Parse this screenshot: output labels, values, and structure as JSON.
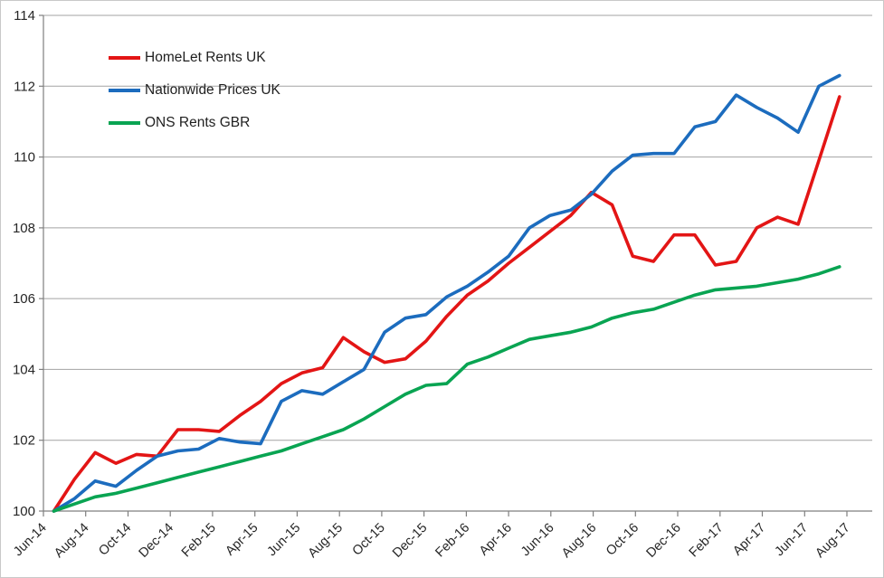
{
  "chart_data": {
    "type": "line",
    "title": "",
    "xlabel": "",
    "ylabel": "",
    "ylim": [
      100,
      114
    ],
    "ytick_step": 2,
    "grid": true,
    "legend_position": "inside-top-left",
    "y_tick_labels": [
      "100",
      "102",
      "104",
      "106",
      "108",
      "110",
      "112",
      "114"
    ],
    "x_tick_labels": [
      "Jun-14",
      "Aug-14",
      "Oct-14",
      "Dec-14",
      "Feb-15",
      "Apr-15",
      "Jun-15",
      "Aug-15",
      "Oct-15",
      "Dec-15",
      "Feb-16",
      "Apr-16",
      "Jun-16",
      "Aug-16",
      "Oct-16",
      "Dec-16",
      "Feb-17",
      "Apr-17",
      "Jun-17",
      "Aug-17"
    ],
    "categories": [
      "Jun-14",
      "Jul-14",
      "Aug-14",
      "Sep-14",
      "Oct-14",
      "Nov-14",
      "Dec-14",
      "Jan-15",
      "Feb-15",
      "Mar-15",
      "Apr-15",
      "May-15",
      "Jun-15",
      "Jul-15",
      "Aug-15",
      "Sep-15",
      "Oct-15",
      "Nov-15",
      "Dec-15",
      "Jan-16",
      "Feb-16",
      "Mar-16",
      "Apr-16",
      "May-16",
      "Jun-16",
      "Jul-16",
      "Aug-16",
      "Sep-16",
      "Oct-16",
      "Nov-16",
      "Dec-16",
      "Jan-17",
      "Feb-17",
      "Mar-17",
      "Apr-17",
      "May-17",
      "Jun-17",
      "Jul-17",
      "Aug-17"
    ],
    "series": [
      {
        "id": "homelet-rents-uk",
        "name": "HomeLet Rents UK",
        "color": "#e31515",
        "values": [
          100,
          100.9,
          101.65,
          101.35,
          101.6,
          101.55,
          102.3,
          102.3,
          102.25,
          102.7,
          103.1,
          103.6,
          103.9,
          104.05,
          104.9,
          104.5,
          104.2,
          104.3,
          104.8,
          105.5,
          106.1,
          106.5,
          107.0,
          107.45,
          107.9,
          108.35,
          109.0,
          108.65,
          107.2,
          107.05,
          107.8,
          107.8,
          106.95,
          107.05,
          108.0,
          108.3,
          108.1,
          109.9,
          111.7
        ]
      },
      {
        "id": "nationwide-prices-uk",
        "name": "Nationwide Prices UK",
        "color": "#1c6cbe",
        "values": [
          100,
          100.35,
          100.85,
          100.7,
          101.15,
          101.55,
          101.7,
          101.75,
          102.05,
          101.95,
          101.9,
          103.1,
          103.4,
          103.3,
          103.65,
          104.0,
          105.05,
          105.45,
          105.55,
          106.05,
          106.35,
          106.75,
          107.2,
          108.0,
          108.35,
          108.5,
          108.95,
          109.6,
          110.05,
          110.1,
          110.1,
          110.85,
          111.0,
          111.75,
          111.4,
          111.1,
          110.7,
          112.0,
          112.3
        ]
      },
      {
        "id": "ons-rents-gbr",
        "name": "ONS Rents GBR",
        "color": "#09a452",
        "values": [
          100,
          100.2,
          100.4,
          100.5,
          100.65,
          100.8,
          100.95,
          101.1,
          101.25,
          101.4,
          101.55,
          101.7,
          101.9,
          102.1,
          102.3,
          102.6,
          102.95,
          103.3,
          103.55,
          103.6,
          104.15,
          104.35,
          104.6,
          104.85,
          104.95,
          105.05,
          105.2,
          105.45,
          105.6,
          105.7,
          105.9,
          106.1,
          106.25,
          106.3,
          106.35,
          106.45,
          106.55,
          106.7,
          106.9
        ]
      }
    ],
    "style": {
      "grid_color": "#a3a3a3",
      "axis_color": "#7f7f7f",
      "tick_color": "#7f7f7f",
      "text_color": "#262626",
      "line_width": 3.6,
      "background": "#ffffff"
    }
  }
}
